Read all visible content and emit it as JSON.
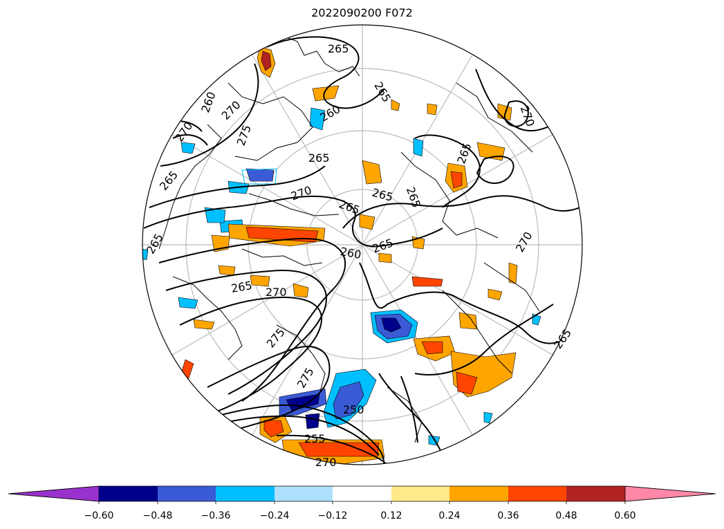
{
  "title": "2022090200 F072",
  "map": {
    "projection": "north-polar-stereographic",
    "contour_labels": [
      "265",
      "265",
      "265",
      "265",
      "265",
      "265",
      "265",
      "265",
      "265",
      "265",
      "265",
      "265",
      "260",
      "260",
      "260",
      "270",
      "270",
      "270",
      "270",
      "270",
      "270",
      "275",
      "275",
      "275",
      "250",
      "255",
      "270"
    ]
  },
  "colorbar": {
    "extend": "both",
    "colors": [
      "#9932CC",
      "#00008B",
      "#3B5BD6",
      "#00BFFF",
      "#ADE0FA",
      "#FFFFFF",
      "#FFE98A",
      "#FFA500",
      "#FF4500",
      "#B22222",
      "#FF88A8"
    ],
    "over_color": "#FF88A8",
    "under_color": "#9932CC",
    "ticks": [
      "−0.60",
      "−0.48",
      "−0.36",
      "−0.24",
      "−0.12",
      "0.12",
      "0.24",
      "0.36",
      "0.48",
      "0.60"
    ]
  }
}
